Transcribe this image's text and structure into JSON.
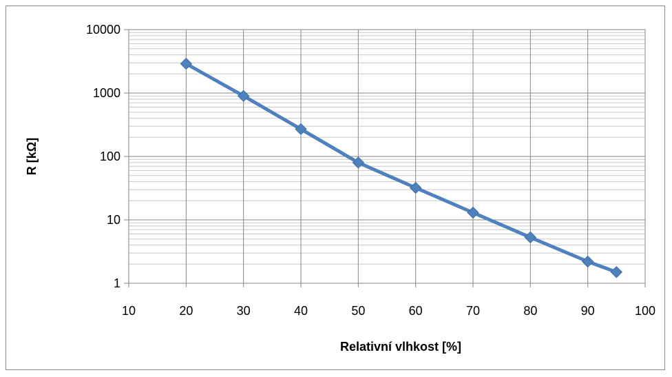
{
  "chart_data": {
    "type": "line",
    "title": "",
    "xlabel": "Relativní vlhkost [%]",
    "ylabel": "R [kΩ]",
    "xlim": [
      10,
      100
    ],
    "ylim": [
      1,
      10000
    ],
    "yscale": "log",
    "grid": true,
    "legend": "none",
    "x_ticks": [
      "10",
      "20",
      "30",
      "40",
      "50",
      "60",
      "70",
      "80",
      "90",
      "100"
    ],
    "y_ticks": [
      "1",
      "10",
      "100",
      "1000",
      "10000"
    ],
    "series": [
      {
        "color": "#4f81bd",
        "marker": "diamond",
        "x": [
          20,
          30,
          40,
          50,
          60,
          70,
          80,
          90,
          95
        ],
        "y": [
          2900,
          900,
          270,
          80,
          32,
          13,
          5.3,
          2.2,
          1.5
        ]
      }
    ]
  }
}
